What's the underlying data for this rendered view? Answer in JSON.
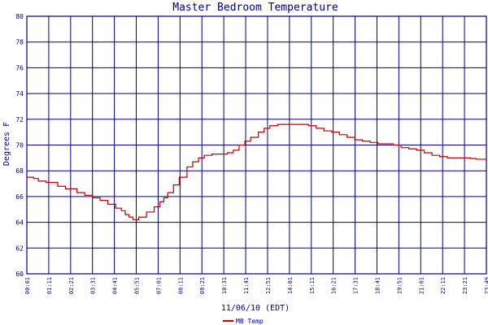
{
  "chart_data": {
    "type": "line",
    "title": "Master Bedroom Temperature",
    "xlabel": "11/06/10 (EDT)",
    "ylabel": "Degrees F",
    "ylim": [
      60,
      80
    ],
    "yticks": [
      60,
      62,
      64,
      66,
      68,
      70,
      72,
      74,
      76,
      78,
      80
    ],
    "xticks": [
      "00:01",
      "01:11",
      "02:21",
      "03:31",
      "04:41",
      "05:51",
      "07:01",
      "08:11",
      "09:21",
      "10:31",
      "11:41",
      "12:51",
      "14:01",
      "15:11",
      "16:21",
      "17:31",
      "18:41",
      "19:51",
      "21:01",
      "22:11",
      "23:21",
      "23:49"
    ],
    "grid": true,
    "legend_position": "bottom-left",
    "series": [
      {
        "name": "MB Temp",
        "color": "#c00000",
        "x": [
          0.0,
          0.35,
          0.6,
          1.0,
          1.6,
          2.0,
          2.6,
          3.0,
          3.4,
          3.8,
          4.2,
          4.6,
          4.9,
          5.1,
          5.3,
          5.5,
          5.8,
          6.2,
          6.6,
          6.9,
          7.1,
          7.3,
          7.6,
          7.9,
          8.3,
          8.6,
          8.9,
          9.2,
          9.6,
          10.0,
          10.4,
          10.7,
          11.0,
          11.3,
          11.6,
          12.0,
          12.3,
          12.6,
          13.0,
          13.4,
          13.8,
          14.2,
          14.6,
          15.0,
          15.4,
          15.8,
          16.2,
          16.6,
          17.0,
          17.4,
          17.8,
          18.2,
          18.6,
          19.0,
          19.4,
          19.8,
          20.2,
          20.6,
          21.0,
          21.4,
          21.8,
          22.2,
          22.6,
          23.0,
          23.3,
          23.6,
          23.82
        ],
        "y": [
          67.5,
          67.4,
          67.2,
          67.1,
          66.8,
          66.6,
          66.3,
          66.1,
          65.9,
          65.7,
          65.4,
          65.1,
          64.9,
          64.6,
          64.4,
          64.2,
          64.4,
          64.8,
          65.2,
          65.6,
          65.9,
          66.3,
          66.9,
          67.5,
          68.3,
          68.7,
          69.0,
          69.2,
          69.3,
          69.3,
          69.4,
          69.6,
          70.0,
          70.3,
          70.6,
          71.0,
          71.3,
          71.5,
          71.6,
          71.6,
          71.6,
          71.6,
          71.5,
          71.3,
          71.1,
          71.0,
          70.8,
          70.6,
          70.4,
          70.3,
          70.2,
          70.1,
          70.1,
          70.0,
          69.8,
          69.7,
          69.6,
          69.4,
          69.2,
          69.1,
          69.0,
          69.0,
          69.0,
          68.95,
          68.9,
          68.9,
          68.8
        ]
      }
    ]
  }
}
